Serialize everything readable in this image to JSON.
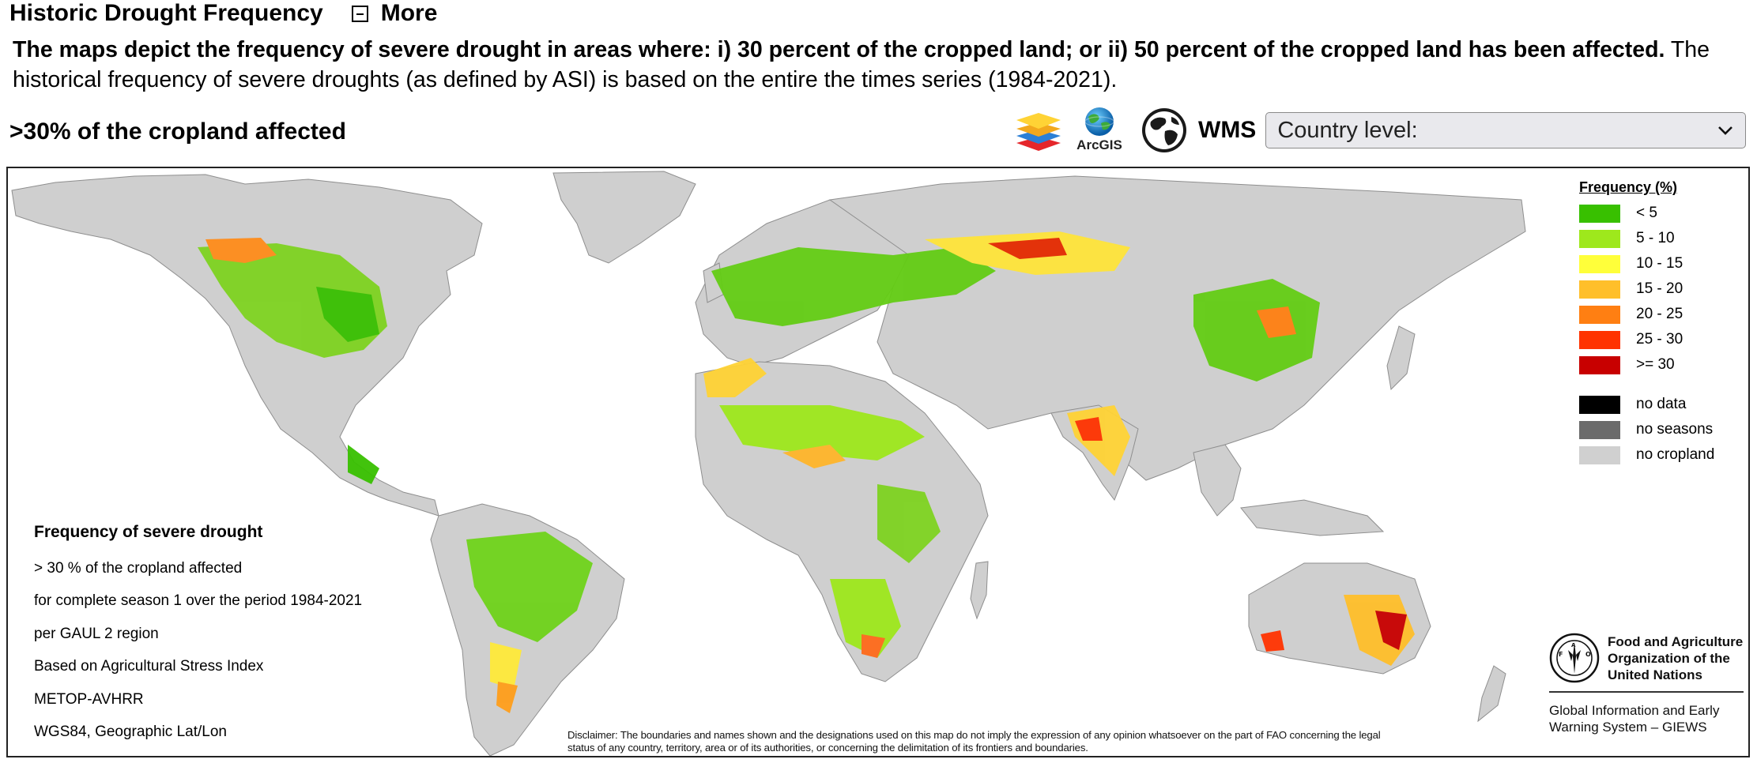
{
  "header": {
    "title": "Historic Drought Frequency",
    "more_label": "More"
  },
  "description": {
    "bold": "The maps depict the frequency of severe drought in areas where: i) 30 percent of the cropped land; or ii) 50 percent of the cropped land has been affected.",
    "normal": " The historical frequency of severe droughts (as defined by ASI) is based on the entire the times series (1984-2021)."
  },
  "subheading": ">30% of the cropland affected",
  "toolbar": {
    "layers_icon": "layers-icon",
    "arcgis_label": "ArcGIS",
    "globe_icon": "globe-icon",
    "wms_label": "WMS",
    "country_select": {
      "selected": "Country level:"
    }
  },
  "map": {
    "legend": {
      "title": "Frequency (%)",
      "frequency_classes": [
        {
          "label": "< 5",
          "color": "#38c000"
        },
        {
          "label": "5 - 10",
          "color": "#9ee81c"
        },
        {
          "label": "10 - 15",
          "color": "#ffff3a"
        },
        {
          "label": "15 - 20",
          "color": "#ffbf2a"
        },
        {
          "label": "20 - 25",
          "color": "#ff7f12"
        },
        {
          "label": "25 - 30",
          "color": "#ff3300"
        },
        {
          "label": ">= 30",
          "color": "#c80000"
        }
      ],
      "other_classes": [
        {
          "label": "no data",
          "color": "#000000"
        },
        {
          "label": "no seasons",
          "color": "#6b6b6b"
        },
        {
          "label": "no cropland",
          "color": "#d0d0d0"
        }
      ]
    },
    "info": {
      "title": "Frequency of severe drought",
      "lines": [
        "> 30 % of the cropland affected",
        "for complete season 1 over the period 1984-2021",
        "per GAUL 2 region",
        "Based on Agricultural Stress Index",
        "METOP-AVHRR",
        "WGS84, Geographic Lat/Lon"
      ]
    },
    "disclaimer": "Disclaimer: The boundaries and names shown and the designations used on this map do not imply the expression of any opinion whatsoever on the part of FAO concerning the legal status of any country, territory, area or of its authorities, or concerning the delimitation of its frontiers and boundaries.",
    "fao": {
      "name_lines": [
        "Food and Agriculture",
        "Organization of the",
        "United Nations"
      ],
      "giews_lines": [
        "Global Information and Early",
        "Warning System – GIEWS"
      ]
    }
  }
}
